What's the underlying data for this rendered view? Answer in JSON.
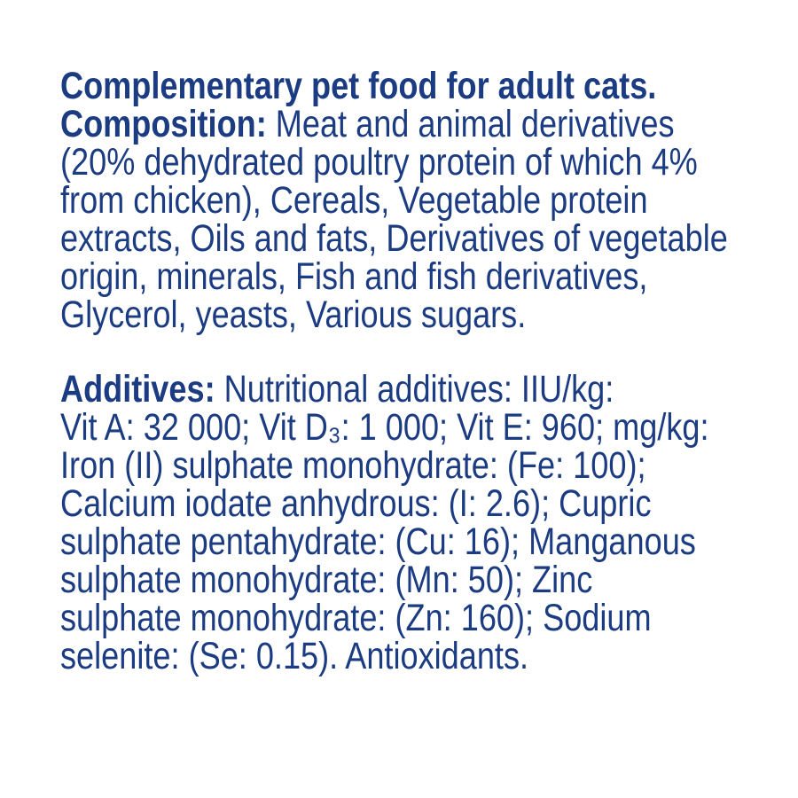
{
  "title": "Complementary pet food for adult cats.",
  "composition": {
    "label": "Composition:",
    "lines": [
      " Meat and animal derivatives",
      "(20% dehydrated poultry protein of which 4%",
      "from chicken), Cereals, Vegetable protein",
      "extracts, Oils and fats, Derivatives of vegetable",
      "origin, minerals, Fish and fish derivatives,",
      "Glycerol, yeasts, Various sugars."
    ]
  },
  "additives": {
    "label": "Additives:",
    "lines": [
      " Nutritional additives: IIU/kg:",
      "Vit A: 32 000; Vit D₃: 1 000; Vit E: 960; mg/kg:",
      "Iron (II) sulphate monohydrate: (Fe: 100);",
      "Calcium iodate anhydrous: (I: 2.6); Cupric",
      "sulphate pentahydrate: (Cu: 16); Manganous",
      "sulphate monohydrate: (Mn: 50); Zinc",
      "sulphate monohydrate: (Zn: 160); Sodium",
      "selenite: (Se: 0.15). Antioxidants."
    ]
  },
  "colors": {
    "text": "#1b3b82",
    "background": "#ffffff"
  }
}
